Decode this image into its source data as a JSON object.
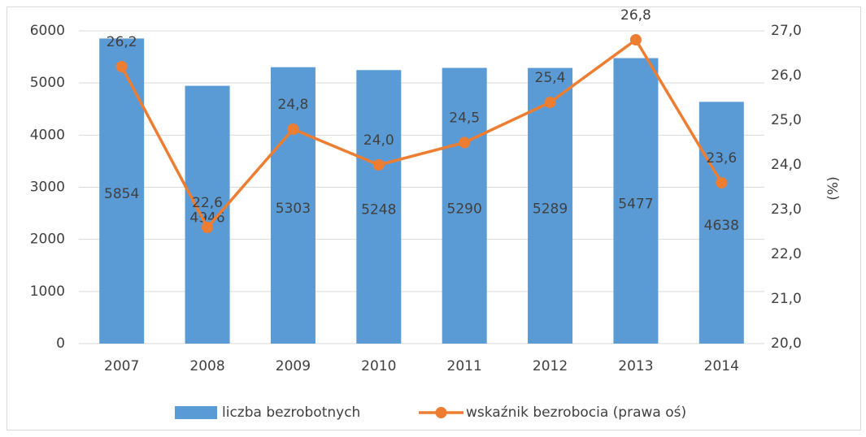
{
  "chart_data": {
    "type": "bar",
    "categories": [
      "2007",
      "2008",
      "2009",
      "2010",
      "2011",
      "2012",
      "2013",
      "2014"
    ],
    "series": [
      {
        "name": "liczba bezrobotnych",
        "type": "bar",
        "color": "#5b9bd5",
        "values": [
          5854,
          4946,
          5303,
          5248,
          5290,
          5289,
          5477,
          4638
        ]
      },
      {
        "name": "wskaźnik bezrobocia (prawa oś)",
        "type": "line",
        "axis": "y2",
        "color": "#ed7d31",
        "values": [
          26.2,
          22.6,
          24.8,
          24.0,
          24.5,
          25.4,
          26.8,
          23.6
        ],
        "value_labels": [
          "26,2",
          "22,6",
          "24,8",
          "24,0",
          "24,5",
          "25,4",
          "26,8",
          "23,6"
        ]
      }
    ],
    "ylim": [
      0,
      6000
    ],
    "yticks": [
      0,
      1000,
      2000,
      3000,
      4000,
      5000,
      6000
    ],
    "y2lim": [
      20,
      27
    ],
    "y2ticks": [
      {
        "value": 20,
        "label": "20,0"
      },
      {
        "value": 21,
        "label": "21,0"
      },
      {
        "value": 22,
        "label": "22,0"
      },
      {
        "value": 23,
        "label": "23,0"
      },
      {
        "value": 24,
        "label": "24,0"
      },
      {
        "value": 25,
        "label": "25,0"
      },
      {
        "value": 26,
        "label": "26,0"
      },
      {
        "value": 27,
        "label": "27,0"
      }
    ],
    "y2label": "(%)",
    "grid": true,
    "legend": "bottom"
  }
}
